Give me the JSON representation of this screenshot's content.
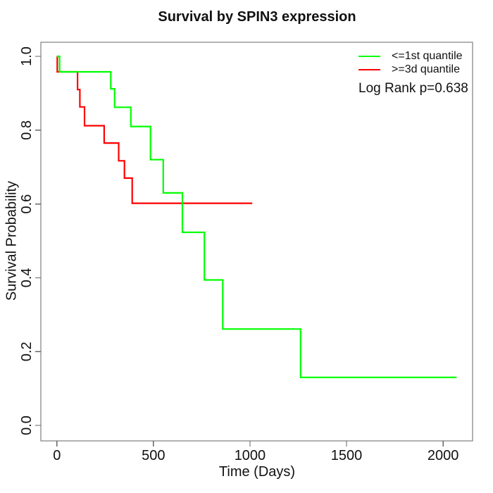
{
  "chart_data": {
    "type": "line",
    "subtype": "kaplan-meier-step",
    "title": "Survival by SPIN3 expression",
    "xlabel": "Time (Days)",
    "ylabel": "Survival Probability",
    "x_ticks": [
      "0",
      "500",
      "1000",
      "1500",
      "2000"
    ],
    "y_ticks": [
      "0.0",
      "0.2",
      "0.4",
      "0.6",
      "0.8",
      "1.0"
    ],
    "xlim": [
      0,
      2070
    ],
    "ylim": [
      0,
      1
    ],
    "grid": false,
    "legend_position": "top-right",
    "annotation": "Log Rank p=0.638",
    "series": [
      {
        "name": "<=1st quantile",
        "color": "#00ff00",
        "start": [
          0,
          1.0
        ],
        "steps": [
          [
            14,
            0.958
          ],
          [
            279,
            0.912
          ],
          [
            299,
            0.862
          ],
          [
            383,
            0.81
          ],
          [
            485,
            0.72
          ],
          [
            551,
            0.63
          ],
          [
            650,
            0.523
          ],
          [
            764,
            0.394
          ],
          [
            859,
            0.261
          ],
          [
            1262,
            0.13
          ]
        ],
        "end_time": 2070
      },
      {
        "name": ">=3d quantile",
        "color": "#ff0000",
        "start": [
          0,
          1.0
        ],
        "steps": [
          [
            2,
            0.958
          ],
          [
            107,
            0.91
          ],
          [
            119,
            0.863
          ],
          [
            143,
            0.812
          ],
          [
            245,
            0.765
          ],
          [
            320,
            0.717
          ],
          [
            350,
            0.67
          ],
          [
            390,
            0.602
          ]
        ],
        "end_time": 1012
      }
    ]
  }
}
